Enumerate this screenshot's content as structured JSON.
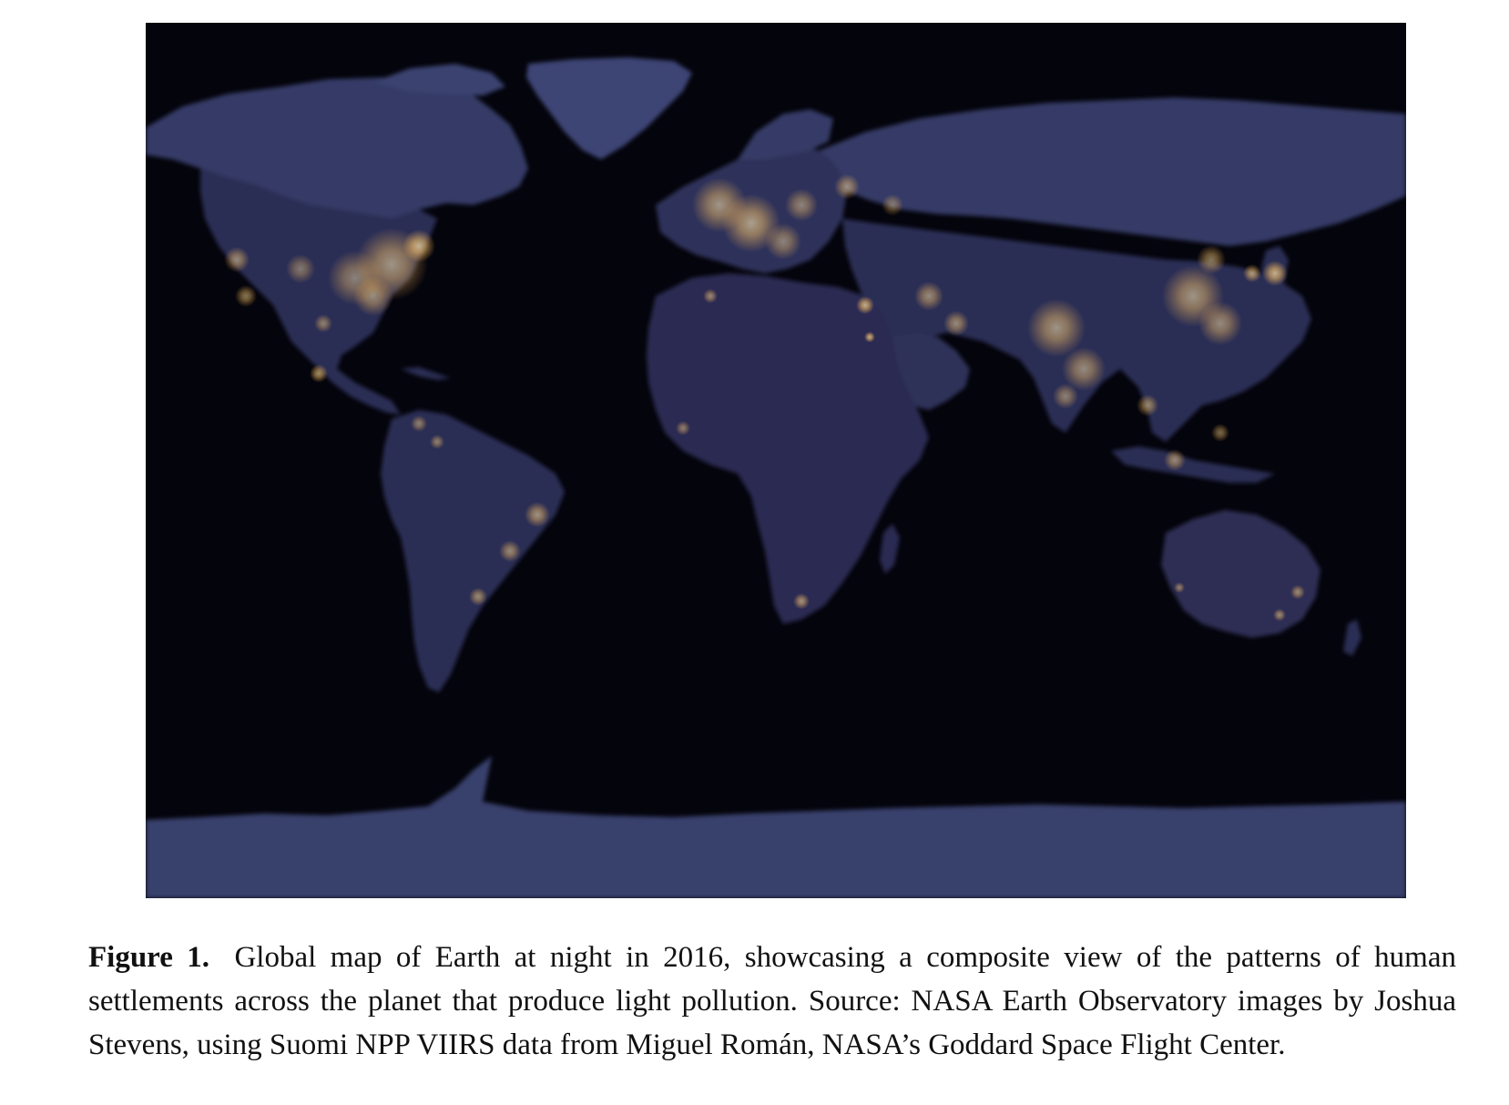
{
  "figure": {
    "image_name": "earth-at-night-map",
    "land_color": "#2c2d55",
    "ocean_color": "#04040c",
    "ice_color": "#3a4270",
    "light_color": "#ffd27a"
  },
  "caption": {
    "label": "Figure 1.",
    "text": "Global map of Earth at night in 2016, showcasing a composite view of the patterns of human settlements across the planet that produce light pollution. Source: NASA Earth Observatory images by Joshua Stevens, using Suomi NPP VIIRS data from Miguel Román, NASA’s Goddard Space Flight Center."
  }
}
